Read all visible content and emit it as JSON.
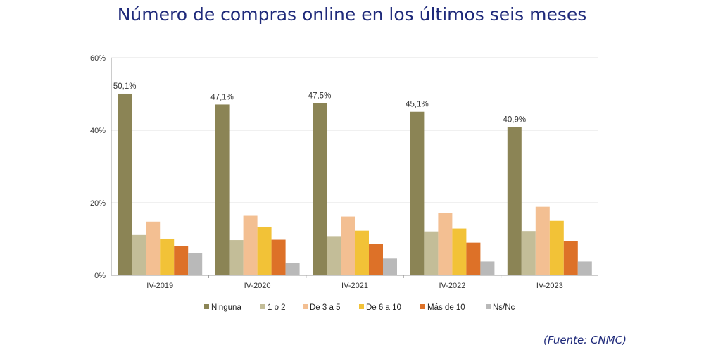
{
  "title": "Número de compras online en los últimos seis meses",
  "source": "(Fuente: CNMC)",
  "chart_data": {
    "type": "bar",
    "title": "Número de compras online en los últimos seis meses",
    "xlabel": "",
    "ylabel": "",
    "categories": [
      "IV-2019",
      "IV-2020",
      "IV-2021",
      "IV-2022",
      "IV-2023"
    ],
    "ylim": [
      0,
      60
    ],
    "yticks": [
      "0%",
      "20%",
      "40%",
      "60%"
    ],
    "grid": true,
    "legend": "bottom",
    "series": [
      {
        "name": "Ninguna",
        "color": "#8b8455",
        "values": [
          50.1,
          47.1,
          47.5,
          45.1,
          40.9
        ],
        "labels": [
          "50,1%",
          "47,1%",
          "47,5%",
          "45,1%",
          "40,9%"
        ]
      },
      {
        "name": "1 o 2",
        "color": "#c3bd98",
        "values": [
          11.1,
          9.7,
          10.8,
          12.1,
          12.2
        ]
      },
      {
        "name": "De 3 a 5",
        "color": "#f3bf92",
        "values": [
          14.8,
          16.4,
          16.2,
          17.2,
          18.9
        ]
      },
      {
        "name": "De 6 a 10",
        "color": "#f2c237",
        "values": [
          10.1,
          13.4,
          12.3,
          12.9,
          15.0
        ]
      },
      {
        "name": "Más de 10",
        "color": "#dd7128",
        "values": [
          8.1,
          9.8,
          8.6,
          9.0,
          9.5
        ]
      },
      {
        "name": "Ns/Nc",
        "color": "#b9b9b9",
        "values": [
          6.1,
          3.4,
          4.6,
          3.8,
          3.8
        ]
      }
    ]
  }
}
